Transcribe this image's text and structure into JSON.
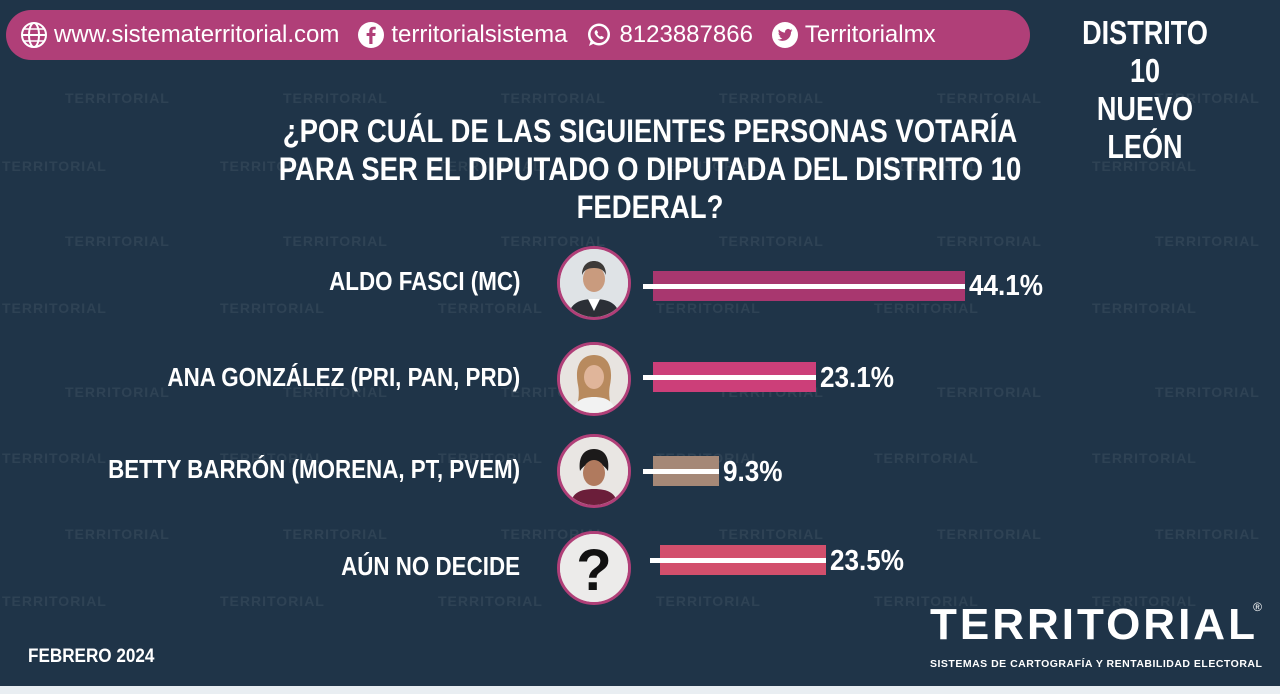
{
  "header": {
    "website": "www.sistematerritorial.com",
    "facebook": "territorialsistema",
    "whatsapp": "8123887866",
    "twitter": "Territorialmx"
  },
  "district": {
    "line1": "DISTRITO 10",
    "line2": "NUEVO LEÓN"
  },
  "chart_data": {
    "type": "bar",
    "title": "¿POR CUÁL DE LAS SIGUIENTES PERSONAS VOTARÍA PARA SER EL DIPUTADO O DIPUTADA DEL DISTRITO 10 FEDERAL?",
    "title_lines": [
      "¿POR CUÁL DE LAS SIGUIENTES PERSONAS VOTARÍA",
      "PARA SER EL DIPUTADO O DIPUTADA DEL DISTRITO 10 FEDERAL?"
    ],
    "orientation": "horizontal",
    "categories": [
      "ALDO FASCI (MC)",
      "ANA GONZÁLEZ (PRI, PAN, PRD)",
      "BETTY BARRÓN (MORENA, PT, PVEM)",
      "AÚN NO DECIDE"
    ],
    "values": [
      44.1,
      23.1,
      9.3,
      23.5
    ],
    "value_labels": [
      "44.1%",
      "23.1%",
      "9.3%",
      "23.5%"
    ],
    "colors": [
      "#a8376f",
      "#cc3f79",
      "#a58877",
      "#d24f6c"
    ],
    "xlabel": "",
    "ylabel": "",
    "grid": false,
    "legend": "none"
  },
  "footer": {
    "date": "FEBRERO 2024",
    "logo_word": "TERRITORIAL",
    "logo_sub": "SISTEMAS DE CARTOGRAFÍA Y RENTABILIDAD ELECTORAL",
    "registered": "®",
    "watermark": "TERRITORIAL"
  },
  "colors": {
    "background": "#1f3448",
    "accent": "#b03f78"
  }
}
